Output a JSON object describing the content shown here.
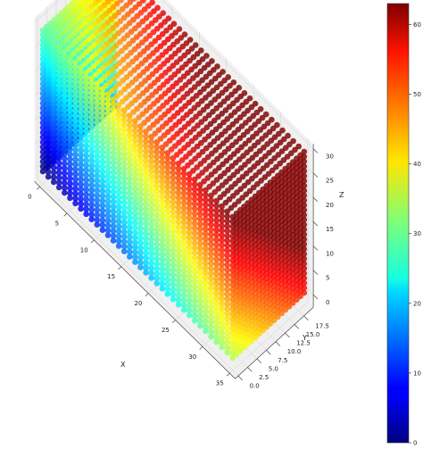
{
  "chart_data": {
    "type": "scatter3d",
    "title": "",
    "marker_colored_by": "x + y + z",
    "colormap": "jet",
    "grid": true,
    "data_grid": {
      "x": [
        0,
        35
      ],
      "y": [
        0,
        19
      ],
      "z": [
        0,
        29
      ],
      "step": 1
    },
    "color_range": [
      0,
      63
    ],
    "axes": {
      "x": {
        "label": "X",
        "range": [
          0,
          35
        ],
        "ticks": [
          "0",
          "5",
          "10",
          "15",
          "20",
          "25",
          "30",
          "35"
        ]
      },
      "y": {
        "label": "Y",
        "range": [
          0,
          19
        ],
        "ticks": [
          "0.0",
          "2.5",
          "5.0",
          "7.5",
          "10.0",
          "12.5",
          "15.0",
          "17.5"
        ]
      },
      "z": {
        "label": "Z",
        "range": [
          0,
          29
        ],
        "ticks": [
          "0",
          "5",
          "10",
          "15",
          "20",
          "25",
          "30"
        ]
      }
    },
    "colorbar": {
      "ticks": [
        "0",
        "10",
        "20",
        "30",
        "40",
        "50",
        "60"
      ],
      "placement": "right"
    }
  }
}
